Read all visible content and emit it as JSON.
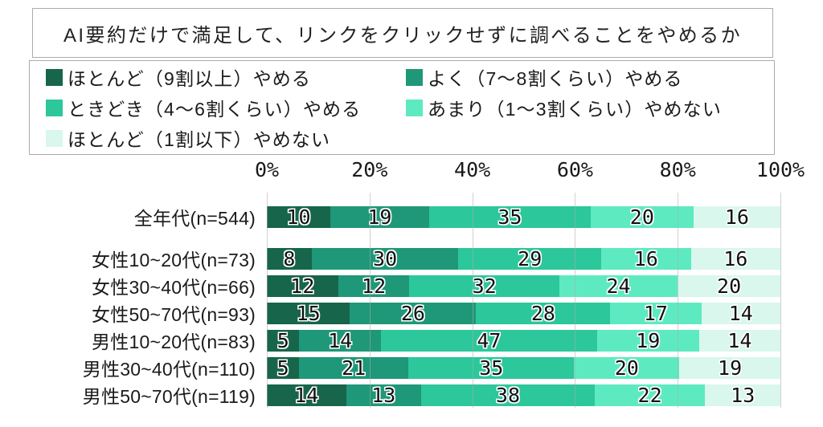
{
  "title": "AI要約だけで満足して、リンクをクリックせずに調べることをやめるか",
  "axis": {
    "ticks": [
      "0%",
      "20%",
      "40%",
      "60%",
      "80%",
      "100%"
    ]
  },
  "palette": [
    "#17654B",
    "#1E9878",
    "#2CC79B",
    "#5EEAC1",
    "#D9F7EC"
  ],
  "legend_items": [
    "ほとんど（9割以上）やめる",
    "よく（7～8割くらい）やめる",
    "ときどき（4～6割くらい）やめる",
    "あまり（1～3割くらい）やめない",
    "ほとんど（1割以下）やめない"
  ],
  "chart_data": {
    "type": "bar",
    "orientation": "horizontal",
    "stacked": true,
    "title": "AI要約だけで満足して、リンクをクリックせずに調べることをやめるか",
    "xlabel": "",
    "ylabel": "",
    "xlim": [
      0,
      100
    ],
    "x_tick_labels": [
      "0%",
      "20%",
      "40%",
      "60%",
      "80%",
      "100%"
    ],
    "grid": true,
    "legend_position": "top",
    "value_unit": "%",
    "categories": [
      "全年代(n=544)",
      "女性10~20代(n=73)",
      "女性30~40代(n=66)",
      "女性50~70代(n=93)",
      "男性10~20代(n=83)",
      "男性30~40代(n=110)",
      "男性50~70代(n=119)"
    ],
    "spacer_after_category_index": 0,
    "series": [
      {
        "name": "ほとんど（9割以上）やめる",
        "color": "#17654B",
        "values": [
          10,
          8,
          12,
          15,
          5,
          5,
          14
        ]
      },
      {
        "name": "よく（7～8割くらい）やめる",
        "color": "#1E9878",
        "values": [
          19,
          30,
          12,
          26,
          14,
          21,
          13
        ]
      },
      {
        "name": "ときどき（4～6割くらい）やめる",
        "color": "#2CC79B",
        "values": [
          35,
          29,
          32,
          28,
          47,
          35,
          38
        ]
      },
      {
        "name": "あまり（1～3割くらい）やめない",
        "color": "#5EEAC1",
        "values": [
          20,
          16,
          24,
          17,
          19,
          20,
          22
        ]
      },
      {
        "name": "ほとんど（1割以下）やめない",
        "color": "#D9F7EC",
        "values": [
          16,
          16,
          20,
          14,
          14,
          19,
          13
        ]
      }
    ]
  }
}
